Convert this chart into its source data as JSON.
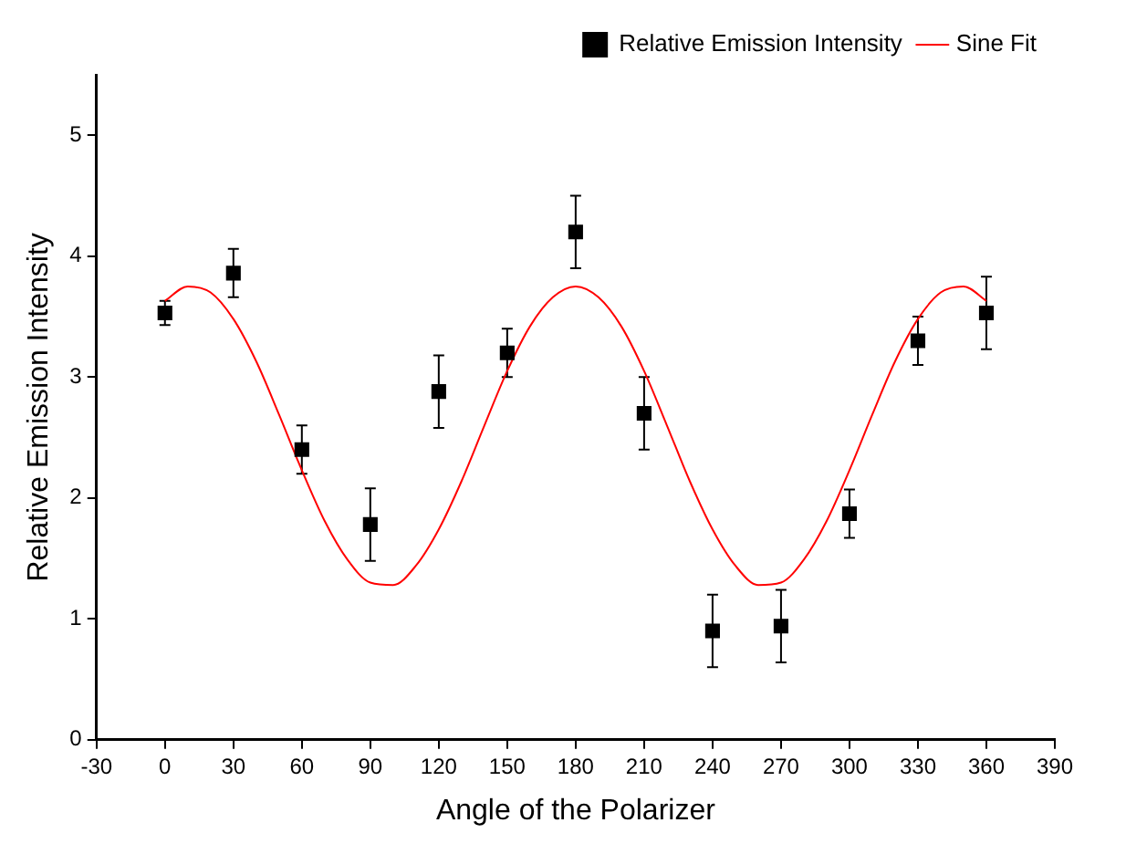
{
  "chart_data": {
    "type": "scatter",
    "xlabel": "Angle of the Polarizer",
    "ylabel": "Relative Emission Intensity",
    "xlim": [
      -30,
      390
    ],
    "xticks": [
      -30,
      0,
      30,
      60,
      90,
      120,
      150,
      180,
      210,
      240,
      270,
      300,
      330,
      360,
      390
    ],
    "ylim": [
      0,
      5.5
    ],
    "yticks": [
      0,
      1,
      2,
      3,
      4,
      5
    ],
    "grid": false,
    "legend": "top right",
    "series": [
      {
        "name": "Relative Emission Intensity",
        "color": "#000000",
        "marker": "square",
        "x": [
          0,
          30,
          60,
          90,
          120,
          150,
          180,
          210,
          240,
          270,
          300,
          330,
          360
        ],
        "values": [
          3.53,
          3.86,
          2.4,
          1.78,
          2.88,
          3.2,
          4.2,
          2.7,
          0.9,
          0.94,
          1.87,
          3.3,
          3.53
        ],
        "errors": [
          0.1,
          0.2,
          0.2,
          0.3,
          0.3,
          0.2,
          0.3,
          0.3,
          0.3,
          0.3,
          0.2,
          0.2,
          0.3
        ]
      },
      {
        "name": "Sine Fit",
        "type": "line",
        "color": "#ff0000",
        "marker": "none",
        "x": [
          0,
          10,
          20,
          30,
          40,
          50,
          60,
          70,
          80,
          90,
          100,
          110,
          120,
          130,
          140,
          150,
          160,
          170,
          180,
          190,
          200,
          210,
          220,
          230,
          240,
          250,
          260,
          270,
          280,
          290,
          300,
          310,
          320,
          330,
          340,
          350,
          360
        ],
        "values": [
          3.63,
          3.75,
          3.7,
          3.48,
          3.13,
          2.69,
          2.23,
          1.81,
          1.49,
          1.3,
          1.28,
          1.44,
          1.74,
          2.14,
          2.6,
          3.05,
          3.42,
          3.66,
          3.75,
          3.66,
          3.42,
          3.05,
          2.6,
          2.14,
          1.74,
          1.44,
          1.28,
          1.3,
          1.49,
          1.81,
          2.23,
          2.69,
          3.13,
          3.48,
          3.7,
          3.75,
          3.63
        ]
      }
    ]
  }
}
